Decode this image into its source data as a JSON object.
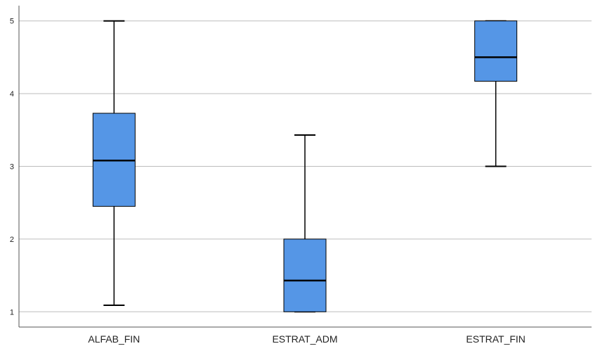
{
  "chart_data": {
    "type": "boxplot",
    "title": "",
    "xlabel": "",
    "ylabel": "",
    "categories": [
      "ALFAB_FIN",
      "ESTRAT_ADM",
      "ESTRAT_FIN"
    ],
    "boxes": [
      {
        "category": "ALFAB_FIN",
        "min": 1.09,
        "q1": 2.45,
        "median": 3.08,
        "q3": 3.73,
        "max": 5.0
      },
      {
        "category": "ESTRAT_ADM",
        "min": 1.0,
        "q1": 1.0,
        "median": 1.43,
        "q3": 2.0,
        "max": 3.43
      },
      {
        "category": "ESTRAT_FIN",
        "min": 3.0,
        "q1": 4.17,
        "median": 4.5,
        "q3": 5.0,
        "max": 5.0
      }
    ],
    "yticks": [
      "1",
      "2",
      "3",
      "4",
      "5"
    ],
    "ylim": [
      0.79,
      5.21
    ],
    "grid": "horizontal",
    "colors": {
      "box_fill": "#5596e6",
      "box_stroke": "#000000",
      "grid": "#bdbdbd"
    }
  }
}
